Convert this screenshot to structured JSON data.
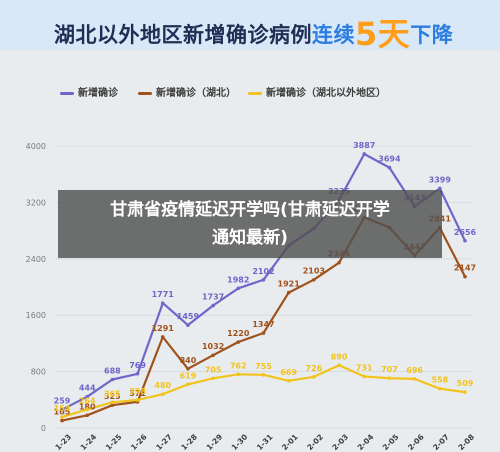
{
  "header": {
    "title_part1": "湖北以外地区新增确诊病例",
    "title_part2": "连续",
    "title_num": "5天",
    "title_part3": "下降"
  },
  "overlay": {
    "line1": "甘肃省疫情延迟开学吗(甘肃延迟开学",
    "line2": "通知最新)"
  },
  "chart_data": {
    "type": "line",
    "x": [
      "1-23",
      "1-24",
      "1-25",
      "1-26",
      "1-27",
      "1-28",
      "1-29",
      "1-30",
      "1-31",
      "2-01",
      "2-02",
      "2-03",
      "2-04",
      "2-05",
      "2-06",
      "2-07",
      "2-08"
    ],
    "ylim": [
      0,
      4000
    ],
    "yticks": [
      "0",
      "800",
      "1600",
      "2400",
      "3200",
      "4000"
    ],
    "grid": true,
    "legend_position": "top-left",
    "series": [
      {
        "name": "新增确诊",
        "color": "#6f66c9",
        "values": [
          259,
          444,
          688,
          769,
          1771,
          1459,
          1737,
          1982,
          2102,
          2590,
          2829,
          3235,
          3887,
          3694,
          3143,
          3399,
          2656
        ],
        "labels": [
          "259",
          "444",
          "688",
          "769",
          "1771",
          "1459",
          "1737",
          "1982",
          "2102",
          "",
          "",
          "3235",
          "3887",
          "3694",
          "3143",
          "3399",
          "2656"
        ]
      },
      {
        "name": "新增确诊（湖北）",
        "color": "#a0521d",
        "values": [
          105,
          180,
          323,
          371,
          1291,
          840,
          1032,
          1220,
          1347,
          1921,
          2103,
          2345,
          2987,
          2845,
          2447,
          2841,
          2147
        ],
        "labels": [
          "105",
          "180",
          "323",
          "371",
          "1291",
          "840",
          "1032",
          "1220",
          "1347",
          "1921",
          "2103",
          "2345",
          "2987",
          "",
          "2447",
          "2841",
          "2147"
        ]
      },
      {
        "name": "新增确诊（湖北以外地区）",
        "color": "#f2c31c",
        "values": [
          154,
          264,
          365,
          398,
          480,
          619,
          705,
          762,
          755,
          669,
          726,
          890,
          731,
          707,
          696,
          558,
          509
        ],
        "labels": [
          "154",
          "264",
          "365",
          "398",
          "480",
          "619",
          "705",
          "762",
          "755",
          "669",
          "726",
          "890",
          "731",
          "707",
          "696",
          "558",
          "509"
        ]
      }
    ]
  }
}
